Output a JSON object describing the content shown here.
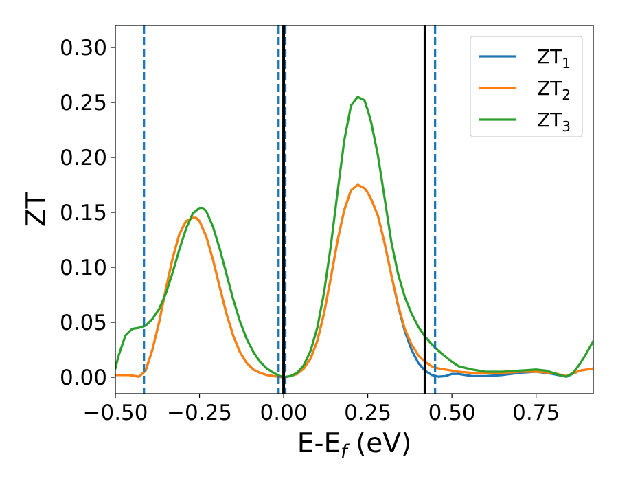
{
  "chart_data": {
    "type": "line",
    "xlabel": "E-E",
    "xlabel_sub": "f",
    "xlabel_unit": " (eV)",
    "ylabel": "ZT",
    "xlim": [
      -0.5,
      0.92
    ],
    "ylim": [
      -0.015,
      0.32
    ],
    "x_ticks": [
      -0.5,
      -0.25,
      0.0,
      0.25,
      0.5,
      0.75
    ],
    "x_tick_labels": [
      "−0.50",
      "−0.25",
      "0.00",
      "0.25",
      "0.50",
      "0.75"
    ],
    "y_ticks": [
      0.0,
      0.05,
      0.1,
      0.15,
      0.2,
      0.25,
      0.3
    ],
    "y_tick_labels": [
      "0.00",
      "0.05",
      "0.10",
      "0.15",
      "0.20",
      "0.25",
      "0.30"
    ],
    "grid": false,
    "legend_position": "top-right",
    "series": [
      {
        "name": "ZT",
        "subscript": "1",
        "color": "#1f77b4",
        "x": [
          -0.5,
          -0.46,
          -0.43,
          -0.41,
          -0.39,
          -0.37,
          -0.35,
          -0.33,
          -0.31,
          -0.29,
          -0.27,
          -0.26,
          -0.25,
          -0.23,
          -0.21,
          -0.19,
          -0.17,
          -0.15,
          -0.13,
          -0.11,
          -0.09,
          -0.07,
          -0.05,
          -0.03,
          -0.01,
          0.0,
          0.02,
          0.04,
          0.06,
          0.08,
          0.1,
          0.12,
          0.14,
          0.16,
          0.18,
          0.2,
          0.22,
          0.24,
          0.25,
          0.26,
          0.28,
          0.3,
          0.32,
          0.34,
          0.36,
          0.38,
          0.4,
          0.42,
          0.44,
          0.46,
          0.48,
          0.5,
          0.52,
          0.56,
          0.6,
          0.65,
          0.7,
          0.75,
          0.8,
          0.84,
          0.88,
          0.92
        ],
        "y": [
          0.002,
          0.002,
          0.0005,
          0.006,
          0.025,
          0.05,
          0.08,
          0.108,
          0.13,
          0.142,
          0.145,
          0.145,
          0.142,
          0.128,
          0.107,
          0.082,
          0.058,
          0.038,
          0.023,
          0.013,
          0.007,
          0.004,
          0.002,
          0.001,
          0.0003,
          0.0,
          0.001,
          0.003,
          0.008,
          0.017,
          0.033,
          0.058,
          0.09,
          0.124,
          0.152,
          0.17,
          0.175,
          0.172,
          0.168,
          0.162,
          0.147,
          0.122,
          0.093,
          0.065,
          0.042,
          0.025,
          0.013,
          0.006,
          0.002,
          0.0005,
          0.001,
          0.003,
          0.003,
          0.001,
          0.001,
          0.002,
          0.004,
          0.005,
          0.003,
          0.0005,
          0.006,
          0.008
        ]
      },
      {
        "name": "ZT",
        "subscript": "2",
        "color": "#ff7f0e",
        "x": [
          -0.5,
          -0.46,
          -0.43,
          -0.41,
          -0.39,
          -0.37,
          -0.35,
          -0.33,
          -0.31,
          -0.29,
          -0.27,
          -0.26,
          -0.25,
          -0.23,
          -0.21,
          -0.19,
          -0.17,
          -0.15,
          -0.13,
          -0.11,
          -0.09,
          -0.07,
          -0.05,
          -0.03,
          -0.01,
          0.0,
          0.02,
          0.04,
          0.06,
          0.08,
          0.1,
          0.12,
          0.14,
          0.16,
          0.18,
          0.2,
          0.22,
          0.24,
          0.25,
          0.26,
          0.28,
          0.3,
          0.32,
          0.34,
          0.36,
          0.38,
          0.4,
          0.42,
          0.44,
          0.46,
          0.48,
          0.5,
          0.52,
          0.56,
          0.6,
          0.65,
          0.7,
          0.75,
          0.8,
          0.84,
          0.88,
          0.92
        ],
        "y": [
          0.002,
          0.002,
          0.0005,
          0.006,
          0.025,
          0.05,
          0.08,
          0.108,
          0.13,
          0.142,
          0.145,
          0.145,
          0.142,
          0.128,
          0.107,
          0.082,
          0.058,
          0.038,
          0.023,
          0.013,
          0.007,
          0.004,
          0.002,
          0.001,
          0.0003,
          0.0,
          0.001,
          0.003,
          0.008,
          0.017,
          0.033,
          0.058,
          0.09,
          0.124,
          0.152,
          0.17,
          0.175,
          0.172,
          0.168,
          0.162,
          0.147,
          0.122,
          0.093,
          0.066,
          0.044,
          0.03,
          0.02,
          0.014,
          0.01,
          0.008,
          0.007,
          0.006,
          0.005,
          0.004,
          0.004,
          0.004,
          0.005,
          0.005,
          0.004,
          0.001,
          0.006,
          0.008
        ]
      },
      {
        "name": "ZT",
        "subscript": "3",
        "color": "#2ca02c",
        "x": [
          -0.5,
          -0.49,
          -0.47,
          -0.45,
          -0.43,
          -0.41,
          -0.39,
          -0.37,
          -0.35,
          -0.33,
          -0.31,
          -0.29,
          -0.27,
          -0.25,
          -0.24,
          -0.23,
          -0.21,
          -0.19,
          -0.17,
          -0.15,
          -0.13,
          -0.11,
          -0.09,
          -0.07,
          -0.05,
          -0.03,
          -0.01,
          0.0,
          0.02,
          0.04,
          0.06,
          0.08,
          0.1,
          0.12,
          0.14,
          0.16,
          0.18,
          0.2,
          0.22,
          0.24,
          0.25,
          0.26,
          0.28,
          0.3,
          0.32,
          0.34,
          0.36,
          0.38,
          0.4,
          0.42,
          0.44,
          0.46,
          0.48,
          0.5,
          0.52,
          0.56,
          0.6,
          0.65,
          0.7,
          0.75,
          0.78,
          0.8,
          0.82,
          0.84,
          0.86,
          0.88,
          0.9,
          0.92
        ],
        "y": [
          0.008,
          0.02,
          0.038,
          0.044,
          0.045,
          0.047,
          0.053,
          0.062,
          0.076,
          0.095,
          0.116,
          0.135,
          0.149,
          0.154,
          0.154,
          0.151,
          0.137,
          0.117,
          0.094,
          0.071,
          0.051,
          0.035,
          0.023,
          0.014,
          0.008,
          0.004,
          0.001,
          0.0,
          0.001,
          0.004,
          0.011,
          0.024,
          0.045,
          0.077,
          0.119,
          0.168,
          0.215,
          0.247,
          0.255,
          0.252,
          0.243,
          0.232,
          0.202,
          0.163,
          0.123,
          0.094,
          0.073,
          0.058,
          0.046,
          0.037,
          0.03,
          0.024,
          0.019,
          0.014,
          0.01,
          0.007,
          0.005,
          0.005,
          0.006,
          0.007,
          0.006,
          0.004,
          0.002,
          0.0005,
          0.004,
          0.012,
          0.022,
          0.033
        ]
      }
    ],
    "vertical_lines": [
      {
        "x": -0.415,
        "style": "dashed",
        "color": "#1f77b4"
      },
      {
        "x": -0.015,
        "style": "dashed",
        "color": "#1f77b4"
      },
      {
        "x": 0.005,
        "style": "dashed",
        "color": "#1f77b4"
      },
      {
        "x": 0.45,
        "style": "dashed",
        "color": "#1f77b4"
      },
      {
        "x": 0.0,
        "style": "solid",
        "color": "#000000"
      },
      {
        "x": 0.42,
        "style": "solid",
        "color": "#000000"
      }
    ]
  }
}
